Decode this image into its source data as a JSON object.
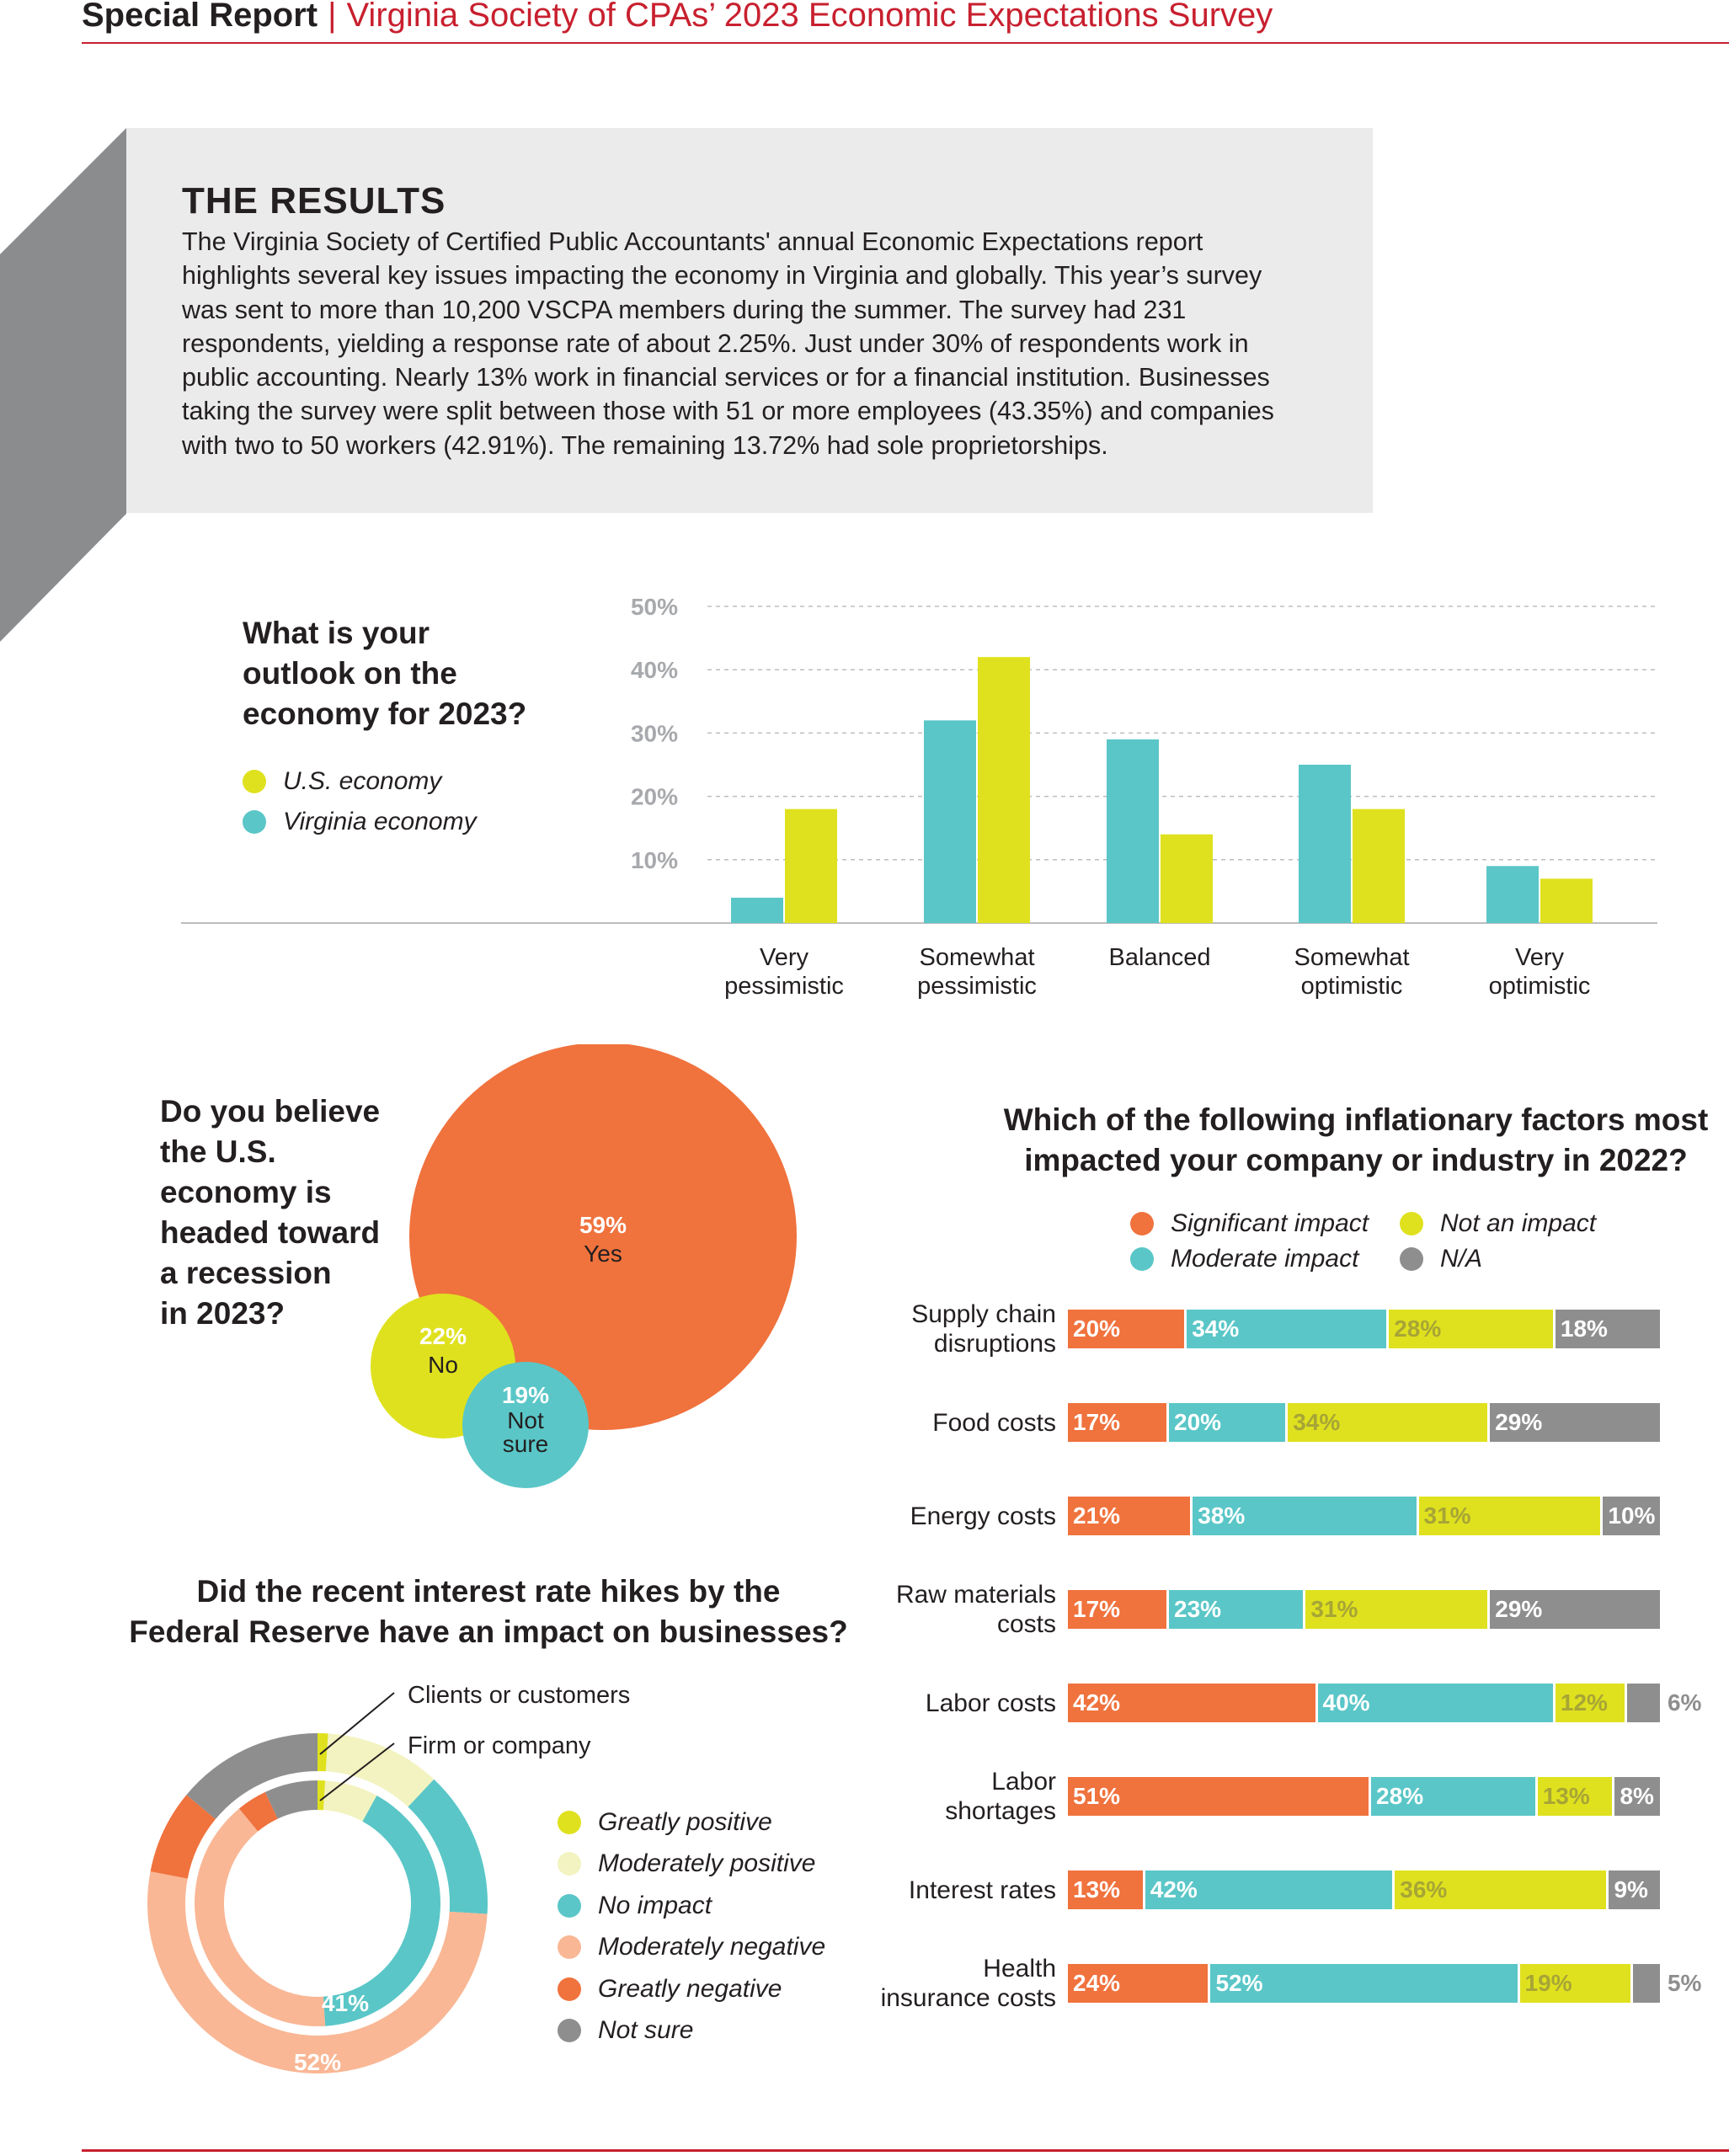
{
  "header": {
    "section": "Special Report",
    "separator": "|",
    "title": "Virginia Society of CPAs’ 2023 Economic Expectations Survey"
  },
  "results": {
    "title": "THE RESULTS",
    "body": "The Virginia Society of Certified Public Accountants' annual Economic Expectations report highlights several key issues impacting the economy in Virginia and globally. This year’s survey was sent to more than 10,200 VSCPA members during the summer. The survey had 231 respondents, yielding a response rate of about 2.25%. Just under 30% of respondents work in public accounting. Nearly 13% work in financial services or for a financial institution. Businesses taking the survey were split between those with 51 or more employees (43.35%) and companies with two to 50 workers (42.91%). The remaining 13.72% had sole proprietorships."
  },
  "colors": {
    "lime": "#dfe11e",
    "teal": "#5ac6c7",
    "orange": "#f0723d",
    "peach": "#f9b795",
    "pale_lime": "#f2f3c0",
    "gray": "#8e8e8e",
    "red": "#c8202f"
  },
  "chart_data": [
    {
      "type": "bar",
      "title": "What is your outlook on the economy for 2023?",
      "categories": [
        "Very pessimistic",
        "Somewhat pessimistic",
        "Balanced",
        "Somewhat optimistic",
        "Very optimistic"
      ],
      "series": [
        {
          "name": "Virginia economy",
          "color": "#5ac6c7",
          "values": [
            4,
            32,
            29,
            25,
            9
          ]
        },
        {
          "name": "U.S. economy",
          "color": "#dfe11e",
          "values": [
            18,
            42,
            14,
            18,
            7
          ]
        }
      ],
      "ylim": [
        0,
        50
      ],
      "yticks": [
        "10%",
        "20%",
        "30%",
        "40%",
        "50%"
      ],
      "grid": true,
      "legend": "left"
    },
    {
      "type": "pie",
      "title": "Do you believe the U.S. economy is headed toward a recession in 2023?",
      "slices": [
        {
          "label": "Yes",
          "value": 59,
          "display": "59%",
          "color": "#f0723d"
        },
        {
          "label": "No",
          "value": 22,
          "display": "22%",
          "color": "#dfe11e"
        },
        {
          "label": "Not sure",
          "value": 19,
          "display": "19%",
          "color": "#5ac6c7"
        }
      ]
    },
    {
      "type": "bar",
      "title": "Which of the following inflationary factors most impacted your company or industry in 2022?",
      "legend": [
        {
          "name": "Significant impact",
          "color": "#f0723d"
        },
        {
          "name": "Not an impact",
          "color": "#dfe11e"
        },
        {
          "name": "Moderate impact",
          "color": "#5ac6c7"
        },
        {
          "name": "N/A",
          "color": "#8e8e8e"
        }
      ],
      "rows": [
        {
          "label": "Supply chain disruptions",
          "values": [
            20,
            34,
            28,
            18
          ]
        },
        {
          "label": "Food costs",
          "values": [
            17,
            20,
            34,
            29
          ]
        },
        {
          "label": "Energy costs",
          "values": [
            21,
            38,
            31,
            10
          ]
        },
        {
          "label": "Raw materials costs",
          "values": [
            17,
            23,
            31,
            29
          ]
        },
        {
          "label": "Labor costs",
          "values": [
            42,
            40,
            12,
            6
          ]
        },
        {
          "label": "Labor shortages",
          "values": [
            51,
            28,
            13,
            8
          ]
        },
        {
          "label": "Interest rates",
          "values": [
            13,
            42,
            36,
            9
          ]
        },
        {
          "label": "Health insurance costs",
          "values": [
            24,
            52,
            19,
            5
          ]
        }
      ]
    },
    {
      "type": "pie",
      "title": "Did the recent interest rate hikes by the Federal Reserve have an impact on businesses?",
      "rings": [
        {
          "name": "Clients or customers",
          "values": [
            1,
            11,
            14,
            52,
            8,
            14
          ],
          "shown_label": "52%"
        },
        {
          "name": "Firm or company",
          "values": [
            1,
            7,
            41,
            40,
            4,
            7
          ],
          "shown_label": "41%"
        }
      ],
      "legend": [
        {
          "name": "Greatly positive",
          "color": "#dfe11e"
        },
        {
          "name": "Moderately positive",
          "color": "#f2f3c0"
        },
        {
          "name": "No impact",
          "color": "#5ac6c7"
        },
        {
          "name": "Moderately negative",
          "color": "#f9b795"
        },
        {
          "name": "Greatly negative",
          "color": "#f0723d"
        },
        {
          "name": "Not sure",
          "color": "#8e8e8e"
        }
      ]
    }
  ],
  "outlook_legend": {
    "us": "U.S. economy",
    "va": "Virginia economy"
  },
  "outlook_title_lines": [
    "What is your",
    "outlook on the",
    "economy for 2023?"
  ],
  "outlook_cat_lines": [
    [
      "Very",
      "pessimistic"
    ],
    [
      "Somewhat",
      "pessimistic"
    ],
    [
      "Balanced"
    ],
    [
      "Somewhat",
      "optimistic"
    ],
    [
      "Very",
      "optimistic"
    ]
  ],
  "recession": {
    "title_lines": [
      "Do you believe",
      "the U.S.",
      "economy is",
      "headed toward",
      "a recession",
      "in 2023?"
    ],
    "yes_pct": "59%",
    "yes": "Yes",
    "no_pct": "22%",
    "no": "No",
    "ns_pct": "19%",
    "ns_line1": "Not",
    "ns_line2": "sure"
  },
  "inflation": {
    "title_line1": "Which of the following inflationary factors most",
    "title_line2": "impacted your company or industry in 2022?",
    "row_label_lines": [
      [
        "Supply chain",
        "disruptions"
      ],
      [
        "Food costs"
      ],
      [
        "Energy costs"
      ],
      [
        "Raw materials",
        "costs"
      ],
      [
        "Labor costs"
      ],
      [
        "Labor",
        "shortages"
      ],
      [
        "Interest rates"
      ],
      [
        "Health",
        "insurance costs"
      ]
    ]
  },
  "rates": {
    "title_line1": "Did the recent interest rate hikes by the",
    "title_line2": "Federal Reserve have an impact on businesses?"
  }
}
